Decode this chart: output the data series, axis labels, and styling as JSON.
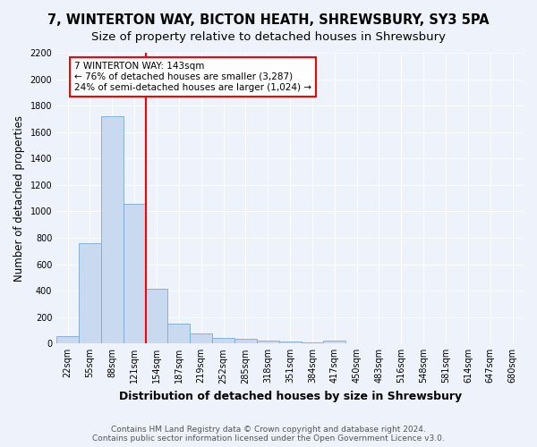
{
  "title1": "7, WINTERTON WAY, BICTON HEATH, SHREWSBURY, SY3 5PA",
  "title2": "Size of property relative to detached houses in Shrewsbury",
  "xlabel": "Distribution of detached houses by size in Shrewsbury",
  "ylabel": "Number of detached properties",
  "bar_labels": [
    "22sqm",
    "55sqm",
    "88sqm",
    "121sqm",
    "154sqm",
    "187sqm",
    "219sqm",
    "252sqm",
    "285sqm",
    "318sqm",
    "351sqm",
    "384sqm",
    "417sqm",
    "450sqm",
    "483sqm",
    "516sqm",
    "548sqm",
    "581sqm",
    "614sqm",
    "647sqm",
    "680sqm"
  ],
  "bar_values": [
    55,
    760,
    1720,
    1060,
    415,
    148,
    78,
    45,
    35,
    25,
    15,
    8,
    20,
    0,
    0,
    0,
    0,
    0,
    0,
    0,
    0
  ],
  "bar_color": "#c9d9f0",
  "bar_edge_color": "#7aaad0",
  "annotation_text_line1": "7 WINTERTON WAY: 143sqm",
  "annotation_text_line2": "← 76% of detached houses are smaller (3,287)",
  "annotation_text_line3": "24% of semi-detached houses are larger (1,024) →",
  "annotation_box_color": "white",
  "annotation_box_edge_color": "red",
  "vline_color": "red",
  "ylim": [
    0,
    2200
  ],
  "yticks": [
    0,
    200,
    400,
    600,
    800,
    1000,
    1200,
    1400,
    1600,
    1800,
    2000,
    2200
  ],
  "footnote": "Contains HM Land Registry data © Crown copyright and database right 2024.\nContains public sector information licensed under the Open Government Licence v3.0.",
  "background_color": "#eef2fb",
  "grid_color": "white",
  "title1_fontsize": 10.5,
  "title2_fontsize": 9.5,
  "xlabel_fontsize": 9,
  "ylabel_fontsize": 8.5,
  "tick_fontsize": 7,
  "annotation_fontsize": 7.5,
  "footnote_fontsize": 6.5
}
